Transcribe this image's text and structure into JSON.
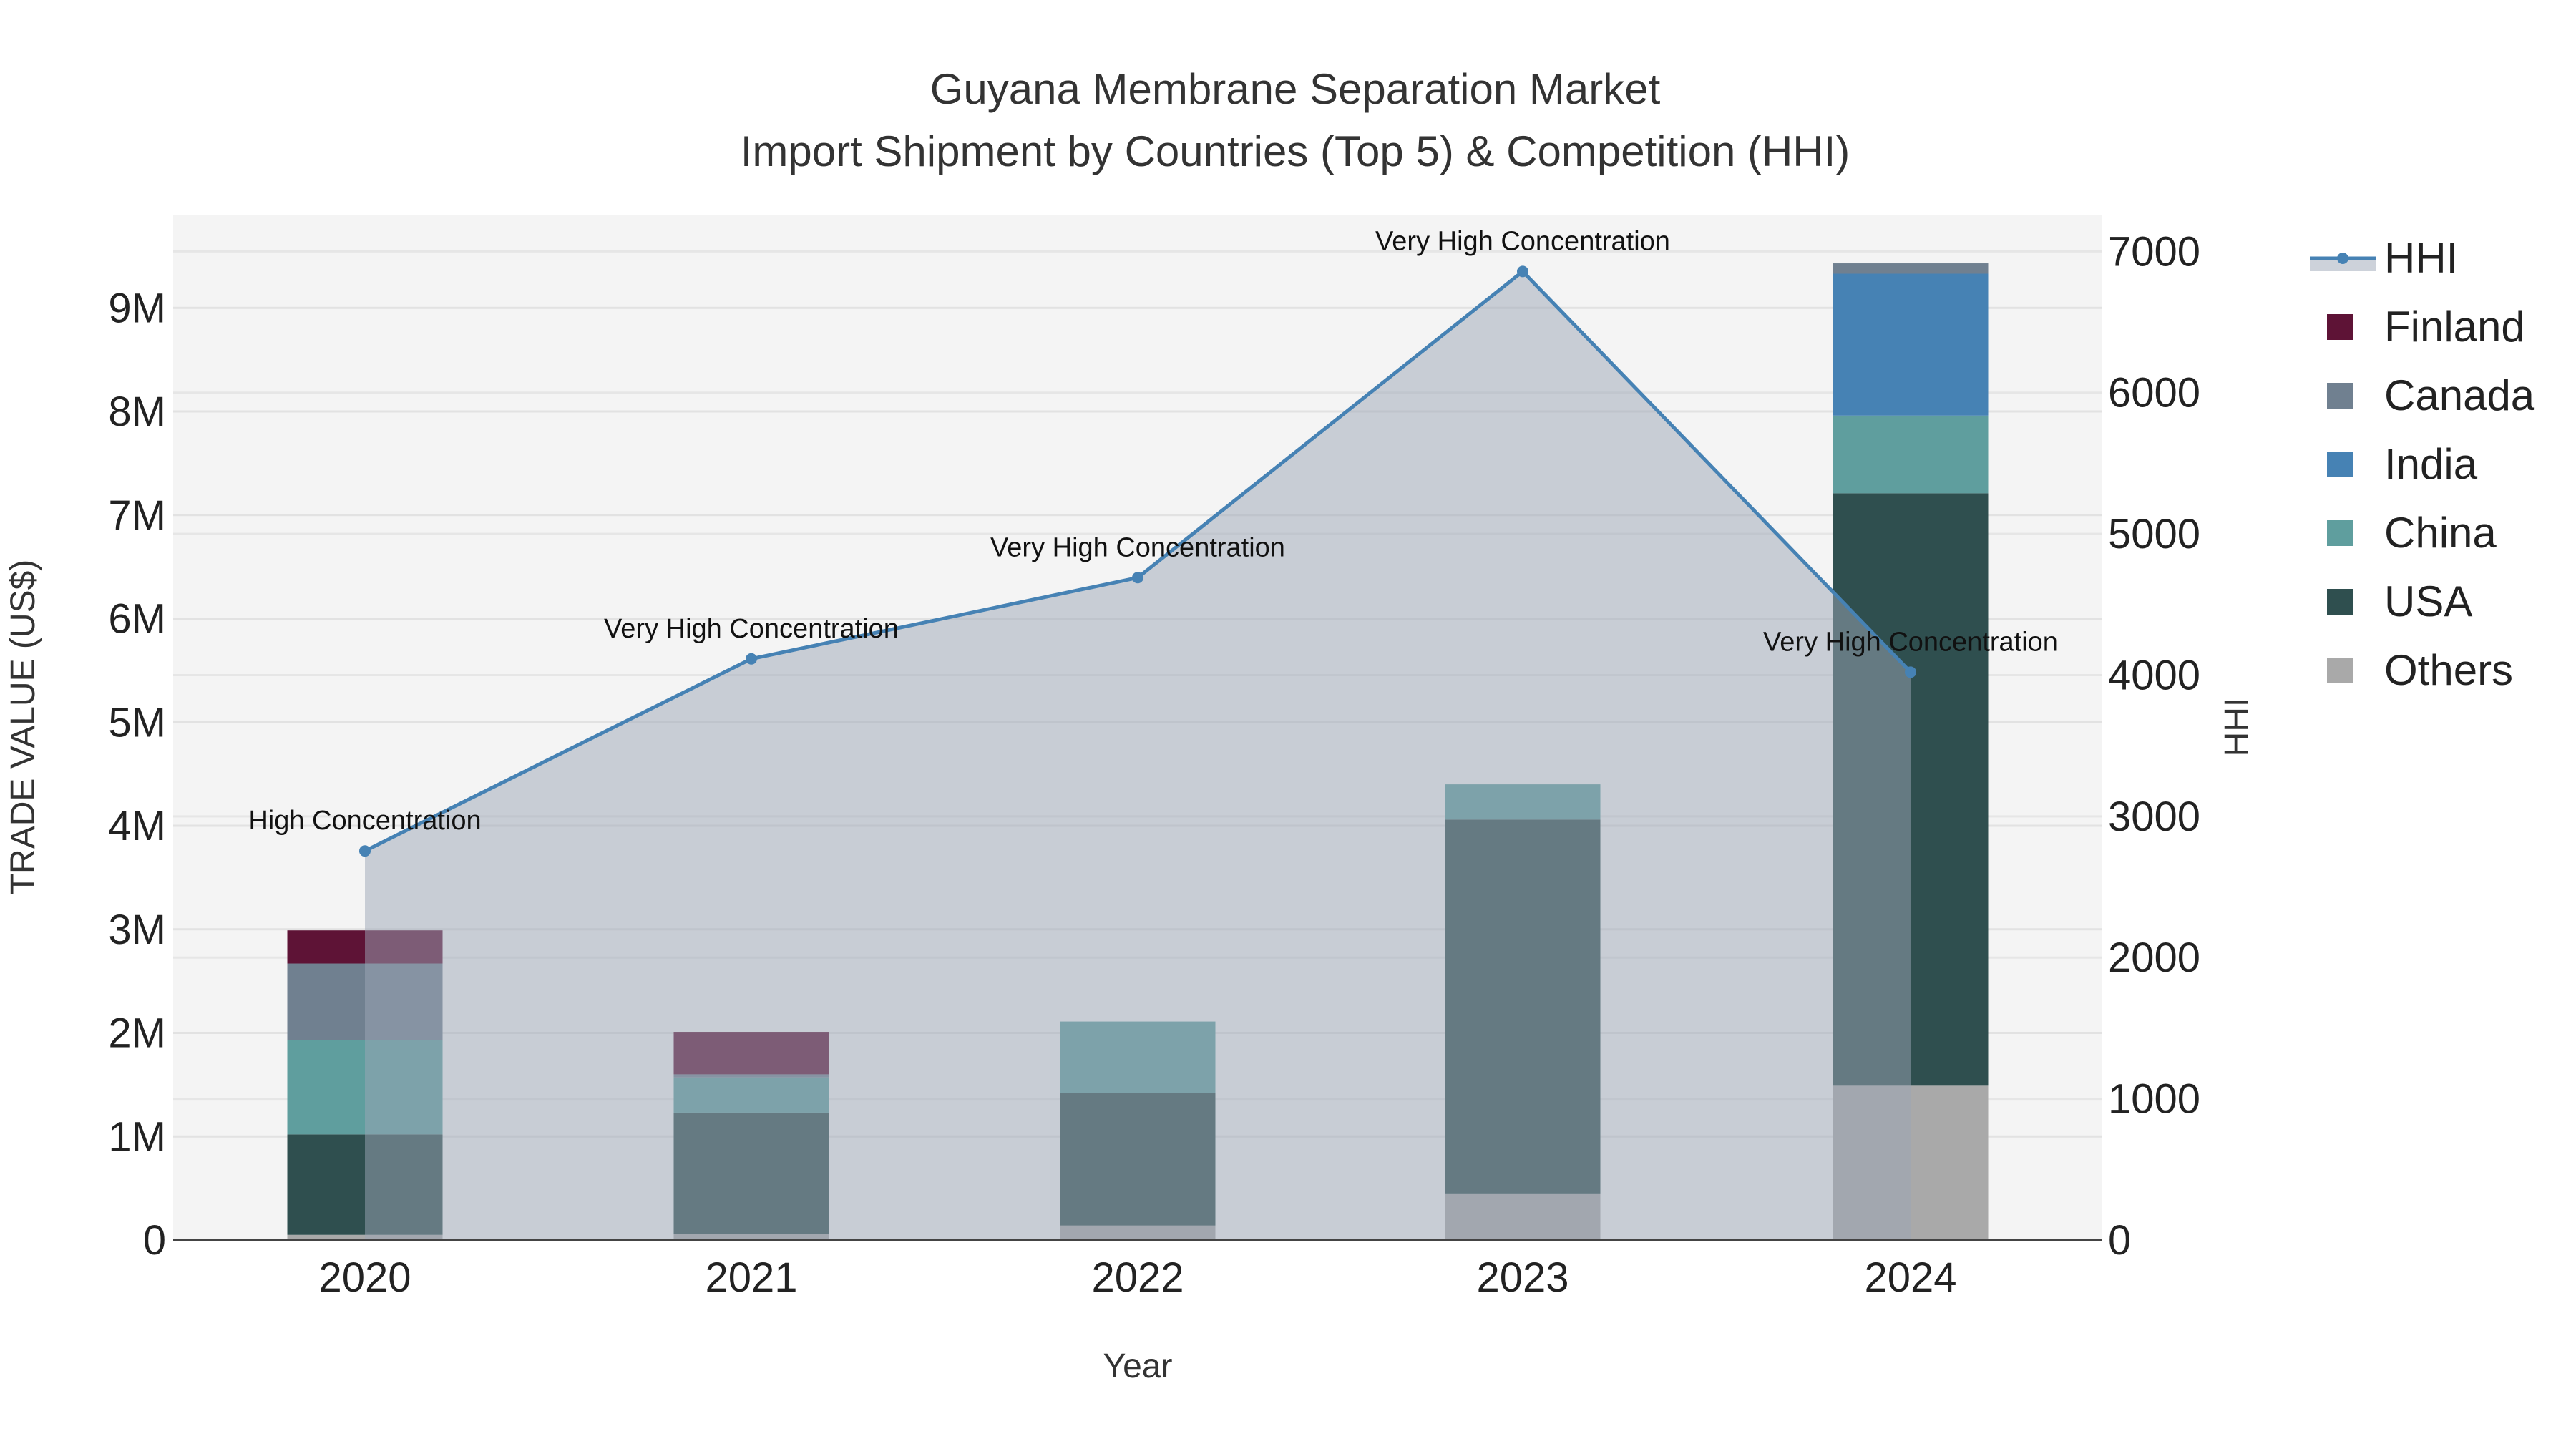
{
  "chart_data": {
    "type": "bar",
    "title": "Guyana Membrane Separation Market",
    "subtitle": "Import Shipment by Countries (Top 5) & Competition (HHI)",
    "xlabel": "Year",
    "ylabel": "TRADE VALUE (US$)",
    "y2label": "HHI",
    "categories": [
      "2020",
      "2021",
      "2022",
      "2023",
      "2024"
    ],
    "ylim": [
      0,
      9900000
    ],
    "y2lim": [
      0,
      7260
    ],
    "yticks": [
      0,
      1000000,
      2000000,
      3000000,
      4000000,
      5000000,
      6000000,
      7000000,
      8000000,
      9000000
    ],
    "ytick_labels": [
      "0",
      "1M",
      "2M",
      "3M",
      "4M",
      "5M",
      "6M",
      "7M",
      "8M",
      "9M"
    ],
    "y2ticks": [
      0,
      1000,
      2000,
      3000,
      4000,
      5000,
      6000,
      7000
    ],
    "y2tick_labels": [
      "0",
      "1000",
      "2000",
      "3000",
      "4000",
      "5000",
      "6000",
      "7000"
    ],
    "stacked": true,
    "series": [
      {
        "name": "Others",
        "color": "#a9a9a9",
        "values": [
          50000,
          60000,
          140000,
          450000,
          1490000
        ]
      },
      {
        "name": "USA",
        "color": "#2f4f4f",
        "values": [
          970000,
          1170000,
          1280000,
          3610000,
          5720000
        ]
      },
      {
        "name": "China",
        "color": "#5f9e9e",
        "values": [
          910000,
          340000,
          690000,
          340000,
          750000
        ]
      },
      {
        "name": "India",
        "color": "#4682b4",
        "values": [
          0,
          0,
          0,
          0,
          1370000
        ]
      },
      {
        "name": "Canada",
        "color": "#708090",
        "values": [
          740000,
          30000,
          0,
          0,
          100000
        ]
      },
      {
        "name": "Finland",
        "color": "#5e1336",
        "values": [
          320000,
          410000,
          0,
          0,
          0
        ]
      }
    ],
    "hhi": {
      "name": "HHI",
      "color": "#4682b4",
      "values": [
        2755,
        4115,
        4690,
        6858,
        4021
      ],
      "labels": [
        "High Concentration",
        "Very High Concentration",
        "Very High Concentration",
        "Very High Concentration",
        "Very High Concentration"
      ]
    },
    "legend": {
      "position": "right",
      "order": [
        "HHI",
        "Finland",
        "Canada",
        "India",
        "China",
        "USA",
        "Others"
      ]
    },
    "grid": true
  }
}
